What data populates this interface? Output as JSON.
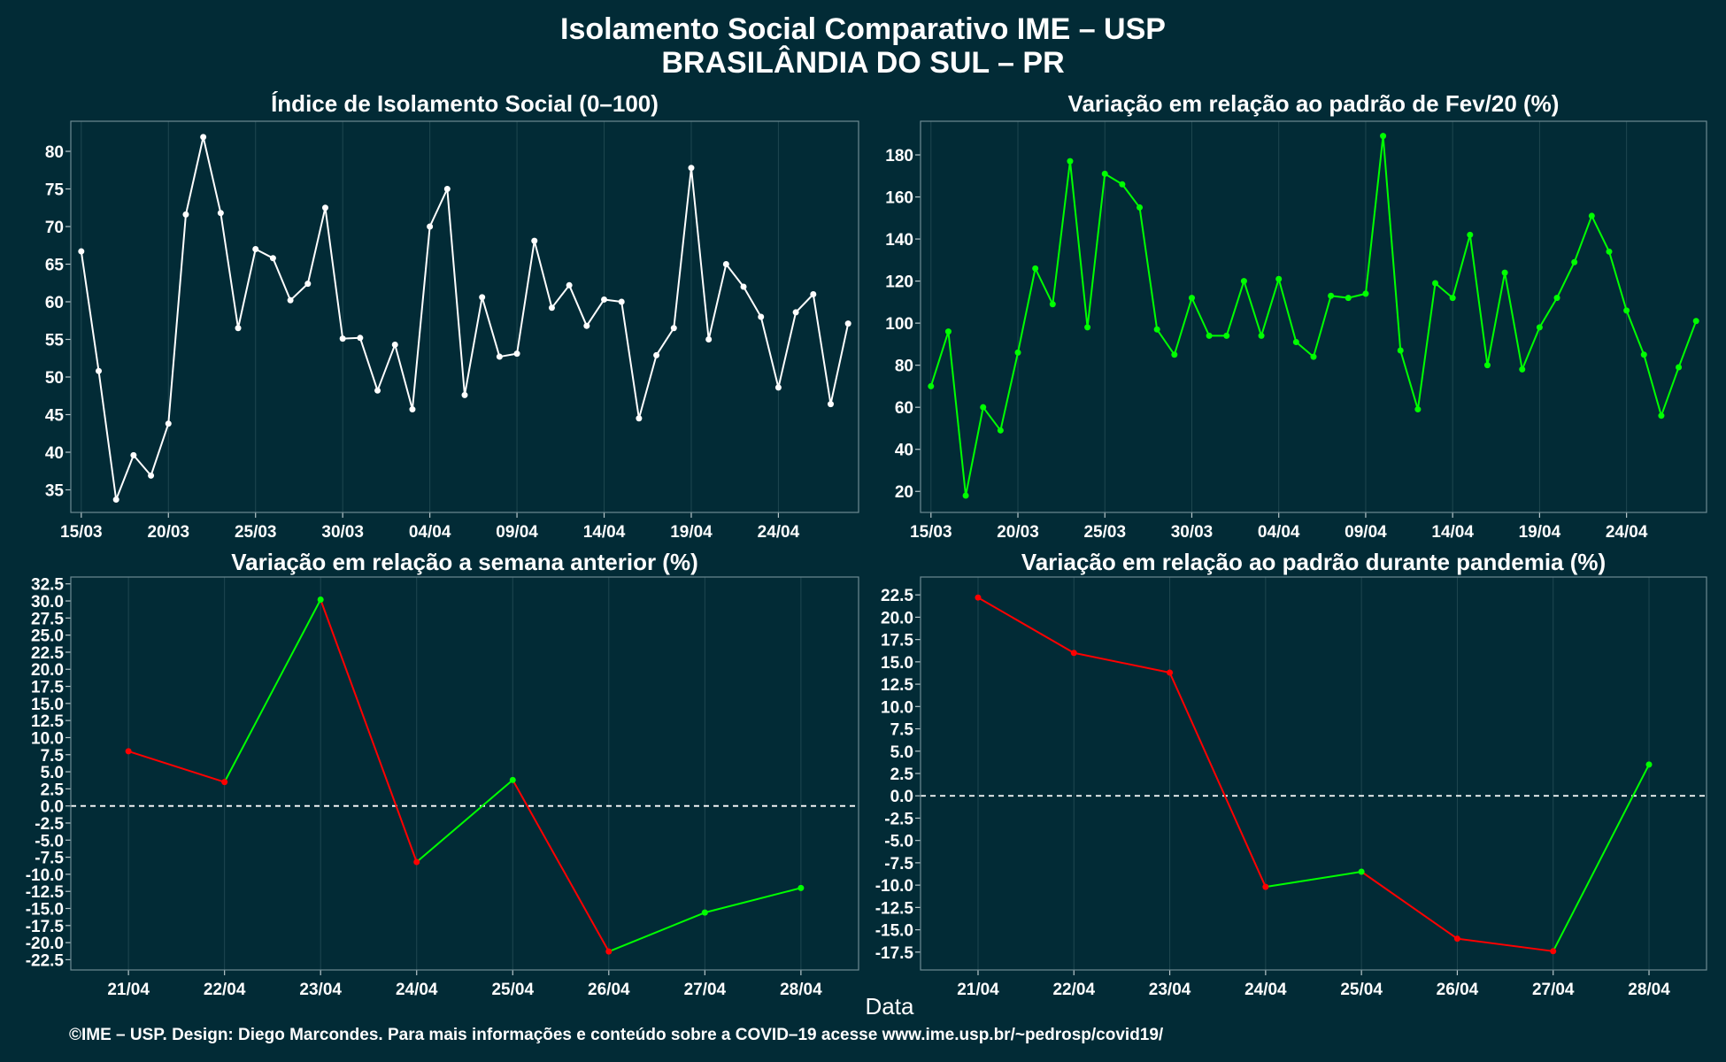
{
  "title_line1": "Isolamento Social Comparativo IME – USP",
  "title_line2": "BRASILÂNDIA DO SUL – PR",
  "x_axis_label": "Data",
  "caption": "©IME – USP. Design: Diego Marcondes. Para mais informações e conteúdo sobre a COVID–19 acesse www.ime.usp.br/~pedrosp/covid19/",
  "colors": {
    "background": "#022b36",
    "white_series": "#ffffff",
    "green": "#00ff00",
    "red": "#ff0000"
  },
  "chart_data": [
    {
      "type": "line",
      "title": "Índice de Isolamento Social (0–100)",
      "x_tick_labels": [
        "15/03",
        "20/03",
        "25/03",
        "30/03",
        "04/04",
        "09/04",
        "14/04",
        "19/04",
        "24/04"
      ],
      "x_tick_positions": [
        0,
        5,
        10,
        15,
        20,
        25,
        30,
        35,
        40
      ],
      "x": [
        0,
        1,
        2,
        3,
        4,
        5,
        6,
        7,
        8,
        9,
        10,
        11,
        12,
        13,
        14,
        15,
        16,
        17,
        18,
        19,
        20,
        21,
        22,
        23,
        24,
        25,
        26,
        27,
        28,
        29,
        30,
        31,
        32,
        33,
        34,
        35,
        36,
        37,
        38,
        39,
        40,
        41,
        42,
        43,
        44
      ],
      "values": [
        66.7,
        50.8,
        33.7,
        39.6,
        36.9,
        43.8,
        71.6,
        81.9,
        71.8,
        56.5,
        67.0,
        65.8,
        60.2,
        62.4,
        72.5,
        55.1,
        55.2,
        48.2,
        54.3,
        45.7,
        70.0,
        75.0,
        47.6,
        60.6,
        52.7,
        53.1,
        68.1,
        59.2,
        62.2,
        56.8,
        60.3,
        60.0,
        44.5,
        52.9,
        56.5,
        77.8,
        55.0,
        65.0,
        62.0,
        58.0,
        48.6,
        58.6,
        61.0,
        46.4,
        57.1
      ],
      "yticks": [
        35,
        40,
        45,
        50,
        55,
        60,
        65,
        70,
        75,
        80
      ],
      "ylim": [
        32,
        84
      ],
      "xlim": [
        -0.6,
        44.6
      ],
      "line_color": "#ffffff"
    },
    {
      "type": "line",
      "title": "Variação em relação ao padrão de Fev/20 (%)",
      "x_tick_labels": [
        "15/03",
        "20/03",
        "25/03",
        "30/03",
        "04/04",
        "09/04",
        "14/04",
        "19/04",
        "24/04"
      ],
      "x_tick_positions": [
        0,
        5,
        10,
        15,
        20,
        25,
        30,
        35,
        40
      ],
      "x": [
        0,
        1,
        2,
        3,
        4,
        5,
        6,
        7,
        8,
        9,
        10,
        11,
        12,
        13,
        14,
        15,
        16,
        17,
        18,
        19,
        20,
        21,
        22,
        23,
        24,
        25,
        26,
        27,
        28,
        29,
        30,
        31,
        32,
        33,
        34,
        35,
        36,
        37,
        38,
        39,
        40,
        41,
        42,
        43,
        44
      ],
      "values": [
        70,
        96,
        18,
        60,
        49,
        86,
        126,
        109,
        177,
        98,
        171,
        166,
        155,
        97,
        85,
        112,
        94,
        94,
        120,
        94,
        121,
        91,
        84,
        113,
        112,
        114,
        189,
        87,
        59,
        119,
        112,
        142,
        80,
        124,
        78,
        98,
        112,
        129,
        151,
        134,
        106,
        85,
        56,
        79,
        101
      ],
      "yticks": [
        20,
        40,
        60,
        80,
        100,
        120,
        140,
        160,
        180
      ],
      "ylim": [
        10,
        196
      ],
      "xlim": [
        -0.6,
        44.6
      ],
      "line_color": "#00ff00"
    },
    {
      "type": "line",
      "title": "Variação em relação a semana anterior (%)",
      "x_tick_labels": [
        "21/04",
        "22/04",
        "23/04",
        "24/04",
        "25/04",
        "26/04",
        "27/04",
        "28/04"
      ],
      "x_tick_positions": [
        0,
        1,
        2,
        3,
        4,
        5,
        6,
        7
      ],
      "x": [
        0,
        1,
        2,
        3,
        4,
        5,
        6,
        7
      ],
      "values": [
        8.0,
        3.5,
        30.2,
        -8.2,
        3.8,
        -21.3,
        -15.6,
        -12.0
      ],
      "yticks": [
        -22.5,
        -20,
        -17.5,
        -15,
        -12.5,
        -10,
        -7.5,
        -5,
        -2.5,
        0,
        2.5,
        5,
        7.5,
        10,
        12.5,
        15,
        17.5,
        20,
        22.5,
        25,
        27.5,
        30,
        32.5
      ],
      "ylim": [
        -24,
        33.5
      ],
      "xlim": [
        -0.6,
        7.6
      ],
      "reference_line": 0,
      "colored_by_trend": true,
      "up_color": "#00ff00",
      "down_color": "#ff0000"
    },
    {
      "type": "line",
      "title": "Variação em relação ao padrão durante pandemia (%)",
      "x_tick_labels": [
        "21/04",
        "22/04",
        "23/04",
        "24/04",
        "25/04",
        "26/04",
        "27/04",
        "28/04"
      ],
      "x_tick_positions": [
        0,
        1,
        2,
        3,
        4,
        5,
        6,
        7
      ],
      "x": [
        0,
        1,
        2,
        3,
        4,
        5,
        6,
        7
      ],
      "values": [
        22.2,
        16.0,
        13.8,
        -10.2,
        -8.5,
        -16.0,
        -17.4,
        3.5
      ],
      "yticks": [
        -17.5,
        -15,
        -12.5,
        -10,
        -7.5,
        -5,
        -2.5,
        0,
        2.5,
        5,
        7.5,
        10,
        12.5,
        15,
        17.5,
        20,
        22.5
      ],
      "ylim": [
        -19.5,
        24.5
      ],
      "xlim": [
        -0.6,
        7.6
      ],
      "reference_line": 0,
      "colored_by_trend": true,
      "up_color": "#00ff00",
      "down_color": "#ff0000"
    }
  ]
}
